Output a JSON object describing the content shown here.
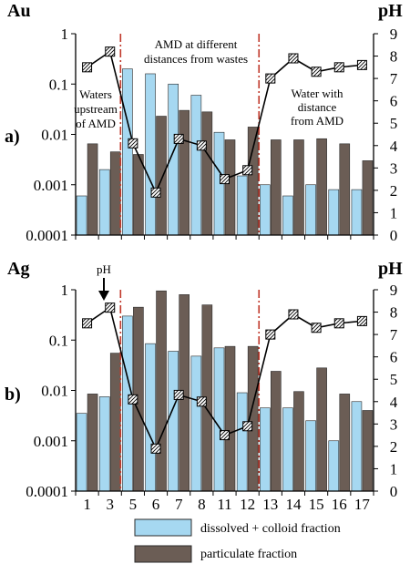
{
  "chart_data": [
    {
      "type": "bar",
      "panel_label": "a)",
      "title_left": "Au",
      "title_right": "pH",
      "y_scale": "log",
      "ylim": [
        0.0001,
        1
      ],
      "yticks": [
        "1",
        "0.1",
        "0.01",
        "0.001",
        "0.0001"
      ],
      "y2lim": [
        0,
        9
      ],
      "y2ticks": [
        "0",
        "1",
        "2",
        "3",
        "4",
        "5",
        "6",
        "7",
        "8",
        "9"
      ],
      "categories": [
        "1",
        "3",
        "5",
        "6",
        "7",
        "8",
        "11",
        "12",
        "13",
        "14",
        "15",
        "16",
        "17"
      ],
      "series": [
        {
          "name": "dissolved + colloid fraction",
          "color": "#a6d8f1",
          "values": [
            0.0006,
            0.002,
            0.2,
            0.16,
            0.1,
            0.06,
            0.011,
            0.0015,
            0.001,
            0.0006,
            0.001,
            0.0008,
            0.0008
          ]
        },
        {
          "name": "particulate fraction",
          "color": "#6b5d55",
          "values": [
            0.0065,
            0.0045,
            0.004,
            0.023,
            0.03,
            0.028,
            0.0078,
            0.014,
            0.0078,
            0.0078,
            0.0082,
            0.0065,
            0.003
          ]
        }
      ],
      "ph": [
        7.5,
        8.2,
        4.1,
        1.9,
        4.3,
        4.0,
        2.5,
        2.9,
        7.0,
        7.9,
        7.3,
        7.5,
        7.6
      ],
      "annotations": [
        {
          "id": "left",
          "lines": [
            "Waters",
            "upstream",
            "of AMD"
          ]
        },
        {
          "id": "middle",
          "lines": [
            "AMD at different",
            "distances from wastes"
          ]
        },
        {
          "id": "right",
          "lines": [
            "Water with",
            "distance",
            "from AMD"
          ]
        }
      ]
    },
    {
      "type": "bar",
      "panel_label": "b)",
      "title_left": "Ag",
      "title_right": "pH",
      "y_scale": "log",
      "ylim": [
        0.0001,
        1
      ],
      "yticks": [
        "1",
        "0.1",
        "0.01",
        "0.001",
        "0.0001"
      ],
      "y2lim": [
        0,
        9
      ],
      "y2ticks": [
        "0",
        "1",
        "2",
        "3",
        "4",
        "5",
        "6",
        "7",
        "8",
        "9"
      ],
      "categories": [
        "1",
        "3",
        "5",
        "6",
        "7",
        "8",
        "11",
        "12",
        "13",
        "14",
        "15",
        "16",
        "17"
      ],
      "xtick_labels": [
        "1",
        "3",
        "5",
        "6",
        "7",
        "8",
        "11",
        "12",
        "13",
        "14",
        "15",
        "16",
        "17"
      ],
      "series": [
        {
          "name": "dissolved + colloid fraction",
          "color": "#a6d8f1",
          "values": [
            0.0035,
            0.0075,
            0.3,
            0.085,
            0.06,
            0.048,
            0.07,
            0.009,
            0.0045,
            0.0045,
            0.0025,
            0.001,
            0.006
          ]
        },
        {
          "name": "particulate fraction",
          "color": "#6b5d55",
          "values": [
            0.0085,
            0.055,
            0.45,
            0.95,
            0.8,
            0.5,
            0.075,
            0.075,
            0.024,
            0.0095,
            0.028,
            0.0085,
            0.004
          ]
        }
      ],
      "ph": [
        7.5,
        8.2,
        4.1,
        1.9,
        4.3,
        4.0,
        2.5,
        2.9,
        7.0,
        7.9,
        7.3,
        7.5,
        7.6
      ],
      "ph_label": "pH"
    }
  ],
  "legend": [
    {
      "label": "dissolved + colloid fraction",
      "color": "#a6d8f1"
    },
    {
      "label": "particulate fraction",
      "color": "#6b5d55"
    }
  ],
  "colors": {
    "dashline": "#c0392b",
    "bar_edge": "#2b2b2b"
  }
}
